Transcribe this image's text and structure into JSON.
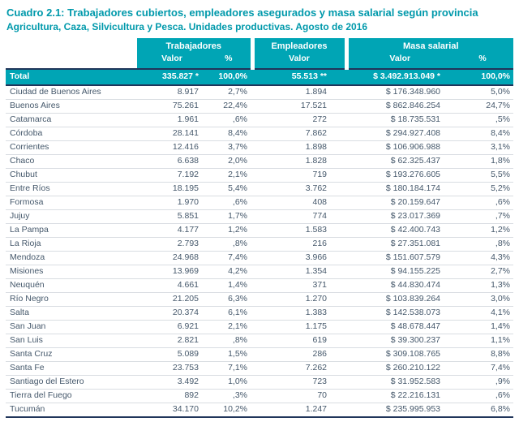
{
  "title": "Cuadro 2.1: Trabajadores cubiertos, empleadores asegurados y masa salarial según provincia",
  "subtitle": "Agricultura, Caza, Silvicultura y Pesca. Unidades productivas.  Agosto de 2016",
  "colors": {
    "teal_accent": "#00a5b5",
    "navy_border": "#20355a",
    "body_text": "#45586b"
  },
  "table": {
    "group_headers": {
      "trabajadores": "Trabajadores",
      "empleadores": "Empleadores",
      "masa_salarial": "Masa salarial"
    },
    "sub_headers": [
      "Valor",
      "%",
      "Valor",
      "Valor",
      "%"
    ],
    "total_row": {
      "label": "Total",
      "values": [
        "335.827 *",
        "100,0%",
        "55.513 **",
        "$ 3.492.913.049 *",
        "100,0%"
      ]
    },
    "rows": [
      [
        "Ciudad de Buenos Aires",
        "8.917",
        "2,7%",
        "1.894",
        "$ 176.348.960",
        "5,0%"
      ],
      [
        "Buenos Aires",
        "75.261",
        "22,4%",
        "17.521",
        "$ 862.846.254",
        "24,7%"
      ],
      [
        "Catamarca",
        "1.961",
        ",6%",
        "272",
        "$ 18.735.531",
        ",5%"
      ],
      [
        "Córdoba",
        "28.141",
        "8,4%",
        "7.862",
        "$ 294.927.408",
        "8,4%"
      ],
      [
        "Corrientes",
        "12.416",
        "3,7%",
        "1.898",
        "$ 106.906.988",
        "3,1%"
      ],
      [
        "Chaco",
        "6.638",
        "2,0%",
        "1.828",
        "$ 62.325.437",
        "1,8%"
      ],
      [
        "Chubut",
        "7.192",
        "2,1%",
        "719",
        "$ 193.276.605",
        "5,5%"
      ],
      [
        "Entre Ríos",
        "18.195",
        "5,4%",
        "3.762",
        "$ 180.184.174",
        "5,2%"
      ],
      [
        "Formosa",
        "1.970",
        ",6%",
        "408",
        "$ 20.159.647",
        ",6%"
      ],
      [
        "Jujuy",
        "5.851",
        "1,7%",
        "774",
        "$ 23.017.369",
        ",7%"
      ],
      [
        "La Pampa",
        "4.177",
        "1,2%",
        "1.583",
        "$ 42.400.743",
        "1,2%"
      ],
      [
        "La Rioja",
        "2.793",
        ",8%",
        "216",
        "$ 27.351.081",
        ",8%"
      ],
      [
        "Mendoza",
        "24.968",
        "7,4%",
        "3.966",
        "$ 151.607.579",
        "4,3%"
      ],
      [
        "Misiones",
        "13.969",
        "4,2%",
        "1.354",
        "$ 94.155.225",
        "2,7%"
      ],
      [
        "Neuquén",
        "4.661",
        "1,4%",
        "371",
        "$ 44.830.474",
        "1,3%"
      ],
      [
        "Río Negro",
        "21.205",
        "6,3%",
        "1.270",
        "$ 103.839.264",
        "3,0%"
      ],
      [
        "Salta",
        "20.374",
        "6,1%",
        "1.383",
        "$ 142.538.073",
        "4,1%"
      ],
      [
        "San Juan",
        "6.921",
        "2,1%",
        "1.175",
        "$ 48.678.447",
        "1,4%"
      ],
      [
        "San Luis",
        "2.821",
        ",8%",
        "619",
        "$ 39.300.237",
        "1,1%"
      ],
      [
        "Santa Cruz",
        "5.089",
        "1,5%",
        "286",
        "$ 309.108.765",
        "8,8%"
      ],
      [
        "Santa Fe",
        "23.753",
        "7,1%",
        "7.262",
        "$ 260.210.122",
        "7,4%"
      ],
      [
        "Santiago del Estero",
        "3.492",
        "1,0%",
        "723",
        "$ 31.952.583",
        ",9%"
      ],
      [
        "Tierra del Fuego",
        "892",
        ",3%",
        "70",
        "$ 22.216.131",
        ",6%"
      ],
      [
        "Tucumán",
        "34.170",
        "10,2%",
        "1.247",
        "$ 235.995.953",
        "6,8%"
      ]
    ]
  }
}
